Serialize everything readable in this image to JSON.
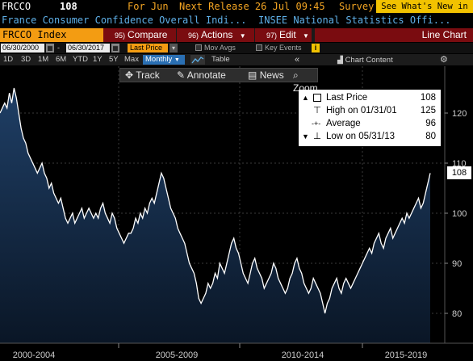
{
  "header": {
    "ticker": "FRCCO",
    "value": "108",
    "for_label": "For Jun",
    "next_release": "Next Release 26 Jul 09:45",
    "survey": "Survey",
    "whats_new": "See What's New in GP",
    "description": "France Consumer Confidence Overall Indi...",
    "source": "INSEE National Statistics Offi..."
  },
  "command_bar": {
    "ticker_field": "FRCCO Index",
    "compare": {
      "num": "95)",
      "label": "Compare"
    },
    "actions": {
      "num": "96)",
      "label": "Actions"
    },
    "edit": {
      "num": "97)",
      "label": "Edit"
    },
    "chart_type": "Line Chart"
  },
  "range_bar": {
    "start_date": "06/30/2000",
    "end_date": "06/30/2017",
    "price_field": "Last Price",
    "mov_avgs": "Mov Avgs",
    "key_events": "Key Events",
    "info": "i"
  },
  "period_bar": {
    "periods": [
      "1D",
      "3D",
      "1M",
      "6M",
      "YTD",
      "1Y",
      "5Y",
      "Max"
    ],
    "frequency": "Monthly",
    "table": "Table",
    "collapse": "«",
    "chart_content": "Chart Content",
    "settings": "⚙"
  },
  "chart_toolbar": {
    "track": "Track",
    "annotate": "Annotate",
    "news": "News",
    "zoom": "Zoom"
  },
  "legend": {
    "last_price": {
      "label": "Last Price",
      "value": "108"
    },
    "high": {
      "label": "High on 01/31/01",
      "value": "125"
    },
    "average": {
      "label": "Average",
      "value": "96"
    },
    "low": {
      "label": "Low on 05/31/13",
      "value": "80"
    }
  },
  "price_flag": "108",
  "colors": {
    "accent": "#f39c12",
    "menu": "#7a0c10",
    "line": "#ffffff",
    "fill_top": "#1f3f66"
  },
  "chart_data": {
    "type": "area",
    "title": "",
    "xlabel": "",
    "ylabel": "",
    "x_tick_labels": [
      "2000-2004",
      "2005-2009",
      "2010-2014",
      "2015-2019"
    ],
    "y_ticks": [
      80,
      90,
      100,
      110,
      120
    ],
    "ylim": [
      75,
      127
    ],
    "xlim": [
      "2000-06",
      "2017-06"
    ],
    "series": [
      {
        "start": "2000-06",
        "frequency": "monthly",
        "values": [
          120,
          121,
          122,
          121,
          124,
          122,
          125,
          123,
          120,
          117,
          115,
          114,
          112,
          111,
          110,
          109,
          108,
          109,
          110,
          108,
          107,
          105,
          106,
          104,
          103,
          102,
          103,
          101,
          99,
          98,
          99,
          100,
          98,
          99,
          100,
          101,
          99,
          100,
          101,
          100,
          99,
          100,
          99,
          101,
          102,
          100,
          99,
          98,
          100,
          99,
          97,
          96,
          95,
          94,
          95,
          96,
          96,
          97,
          99,
          98,
          100,
          99,
          101,
          100,
          102,
          103,
          102,
          104,
          106,
          108,
          107,
          105,
          103,
          101,
          100,
          99,
          97,
          96,
          95,
          94,
          92,
          90,
          89,
          88,
          86,
          83,
          82,
          83,
          84,
          86,
          85,
          86,
          88,
          87,
          90,
          89,
          88,
          90,
          92,
          94,
          95,
          93,
          92,
          90,
          88,
          87,
          86,
          88,
          90,
          91,
          89,
          88,
          87,
          85,
          86,
          87,
          88,
          90,
          89,
          87,
          86,
          85,
          84,
          85,
          87,
          88,
          90,
          91,
          89,
          88,
          86,
          85,
          84,
          85,
          87,
          86,
          85,
          84,
          82,
          80,
          82,
          83,
          85,
          86,
          87,
          85,
          84,
          86,
          87,
          86,
          85,
          86,
          87,
          88,
          89,
          90,
          91,
          92,
          93,
          92,
          94,
          95,
          96,
          94,
          93,
          95,
          96,
          97,
          95,
          96,
          97,
          98,
          99,
          98,
          100,
          99,
          100,
          101,
          102,
          103,
          101,
          102,
          104,
          106,
          108
        ]
      }
    ]
  }
}
